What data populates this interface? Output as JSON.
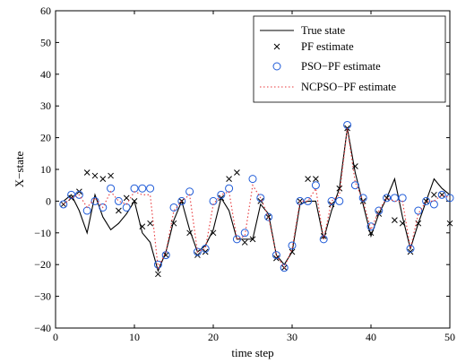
{
  "chart_data": {
    "type": "line",
    "title": "",
    "xlabel": "time step",
    "ylabel": "X−state",
    "xlim": [
      0,
      50
    ],
    "ylim": [
      -40,
      60
    ],
    "xticks": [
      0,
      10,
      20,
      30,
      40,
      50
    ],
    "yticks": [
      -40,
      -30,
      -20,
      -10,
      0,
      10,
      20,
      30,
      40,
      50,
      60
    ],
    "grid": false,
    "legend_position": "top-right",
    "series": [
      {
        "name": "True state",
        "style": "solid-line",
        "color": "#000000",
        "x": [
          1,
          2,
          3,
          4,
          5,
          6,
          7,
          8,
          9,
          10,
          11,
          12,
          13,
          14,
          15,
          16,
          17,
          18,
          19,
          20,
          21,
          22,
          23,
          24,
          25,
          26,
          27,
          28,
          29,
          30,
          31,
          32,
          33,
          34,
          35,
          36,
          37,
          38,
          39,
          40,
          41,
          42,
          43,
          44,
          45,
          46,
          47,
          48,
          49,
          50
        ],
        "y": [
          0,
          2,
          -3,
          -10,
          2,
          -5,
          -9,
          -7,
          -4,
          0,
          -10,
          -13,
          -22,
          -16,
          -6,
          0,
          -9,
          -16,
          -14,
          -9,
          1,
          -3,
          -12,
          -12,
          -12,
          -1,
          -4,
          -17,
          -20,
          -16,
          -1,
          0,
          0,
          -12,
          -3,
          4,
          23,
          9,
          -1,
          -11,
          -4,
          1,
          7,
          -5,
          -15,
          -7,
          0,
          7,
          4,
          2
        ]
      },
      {
        "name": "PF estimate",
        "style": "x-marker",
        "color": "#000000",
        "x": [
          1,
          2,
          3,
          4,
          5,
          6,
          7,
          8,
          9,
          10,
          11,
          12,
          13,
          14,
          15,
          16,
          17,
          18,
          19,
          20,
          21,
          22,
          23,
          24,
          25,
          26,
          27,
          28,
          29,
          30,
          31,
          32,
          33,
          34,
          35,
          36,
          37,
          38,
          39,
          40,
          41,
          42,
          43,
          44,
          45,
          46,
          47,
          48,
          49,
          50
        ],
        "y": [
          -1,
          1,
          3,
          9,
          8,
          7,
          8,
          -3,
          1,
          0,
          -8,
          -7,
          -23,
          -17,
          -7,
          0,
          -10,
          -17,
          -16,
          -10,
          1,
          7,
          9,
          -13,
          -12,
          0,
          -5,
          -18,
          -21,
          -16,
          0,
          7,
          7,
          -11,
          -1,
          4,
          23,
          11,
          0,
          -10,
          -4,
          1,
          -6,
          -7,
          -16,
          -7,
          0,
          2,
          2,
          -7
        ]
      },
      {
        "name": "PSO−PF estimate",
        "style": "circle-marker",
        "color": "#1f5bd8",
        "x": [
          1,
          2,
          3,
          4,
          5,
          6,
          7,
          8,
          9,
          10,
          11,
          12,
          13,
          14,
          15,
          16,
          17,
          18,
          19,
          20,
          21,
          22,
          23,
          24,
          25,
          26,
          27,
          28,
          29,
          30,
          31,
          32,
          33,
          34,
          35,
          36,
          37,
          38,
          39,
          40,
          41,
          42,
          43,
          44,
          45,
          46,
          47,
          48,
          49,
          50
        ],
        "y": [
          -1,
          2,
          2,
          -3,
          0,
          -2,
          4,
          0,
          -2,
          4,
          4,
          4,
          -20,
          -17,
          -2,
          0,
          3,
          -16,
          -15,
          0,
          2,
          4,
          -12,
          -10,
          7,
          1,
          -5,
          -17,
          -21,
          -14,
          0,
          0,
          5,
          -12,
          0,
          0,
          24,
          5,
          1,
          -8,
          -3,
          1,
          1,
          1,
          -15,
          -3,
          0,
          -1,
          2,
          1
        ]
      },
      {
        "name": "NCPSO−PF estimate",
        "style": "dotted-line",
        "color": "#e8383b",
        "x": [
          1,
          2,
          3,
          4,
          5,
          6,
          7,
          8,
          9,
          10,
          11,
          12,
          13,
          14,
          15,
          16,
          17,
          18,
          19,
          20,
          21,
          22,
          23,
          24,
          25,
          26,
          27,
          28,
          29,
          30,
          31,
          32,
          33,
          34,
          35,
          36,
          37,
          38,
          39,
          40,
          41,
          42,
          43,
          44,
          45,
          46,
          47,
          48,
          49,
          50
        ],
        "y": [
          -1,
          1,
          2,
          -2,
          1,
          -2,
          3,
          0,
          -1,
          3,
          2,
          2,
          -21,
          -16,
          -3,
          0,
          2,
          -16,
          -15,
          -1,
          2,
          3,
          -12,
          -11,
          5,
          1,
          -5,
          -17,
          -21,
          -15,
          0,
          0,
          4,
          -12,
          0,
          2,
          23,
          6,
          0,
          -9,
          -3,
          1,
          0,
          0,
          -15,
          -4,
          0,
          0,
          2,
          1
        ]
      }
    ]
  }
}
